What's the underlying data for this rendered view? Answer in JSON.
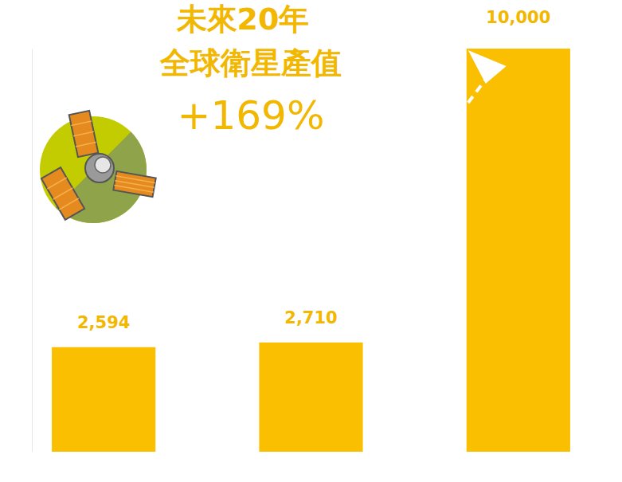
{
  "chart_data": {
    "type": "bar",
    "title": "未來20年",
    "subtitle": "全球衛星產值",
    "annotations": [
      "+169%"
    ],
    "categories": [
      null,
      null,
      null
    ],
    "values": [
      2594,
      2710,
      10000
    ],
    "value_labels": [
      "2,594",
      "2,710",
      "10,000"
    ],
    "color": "#f9bf00",
    "ylim": [
      0,
      10000
    ],
    "yticks": [],
    "data_labels": true,
    "tick_labels": false,
    "grid": false
  }
}
